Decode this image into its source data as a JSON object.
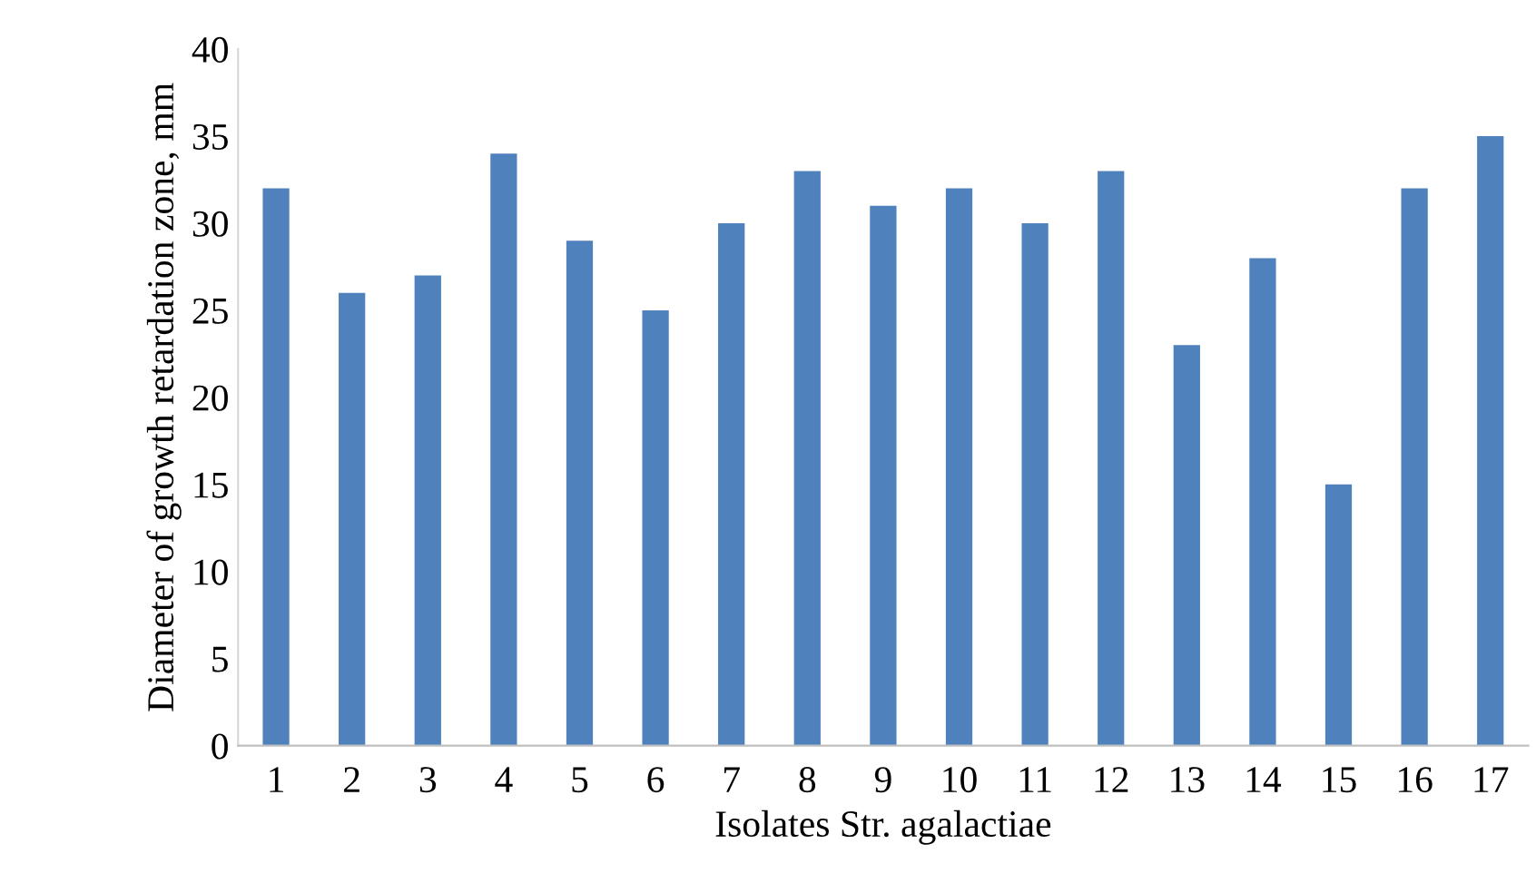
{
  "chart_data": {
    "type": "bar",
    "categories": [
      "1",
      "2",
      "3",
      "4",
      "5",
      "6",
      "7",
      "8",
      "9",
      "10",
      "11",
      "12",
      "13",
      "14",
      "15",
      "16",
      "17"
    ],
    "values": [
      32,
      26,
      27,
      34,
      29,
      25,
      30,
      33,
      31,
      32,
      30,
      33,
      23,
      28,
      15,
      32,
      35
    ],
    "color": "#4f81bd",
    "xlabel": "Isolates Str. agalactiae",
    "ylabel": "Diameter of growth retardation zone, mm",
    "ylim": [
      0,
      40
    ],
    "yticks": [
      0,
      5,
      10,
      15,
      20,
      25,
      30,
      35,
      40
    ],
    "grid": false,
    "legend": false
  }
}
